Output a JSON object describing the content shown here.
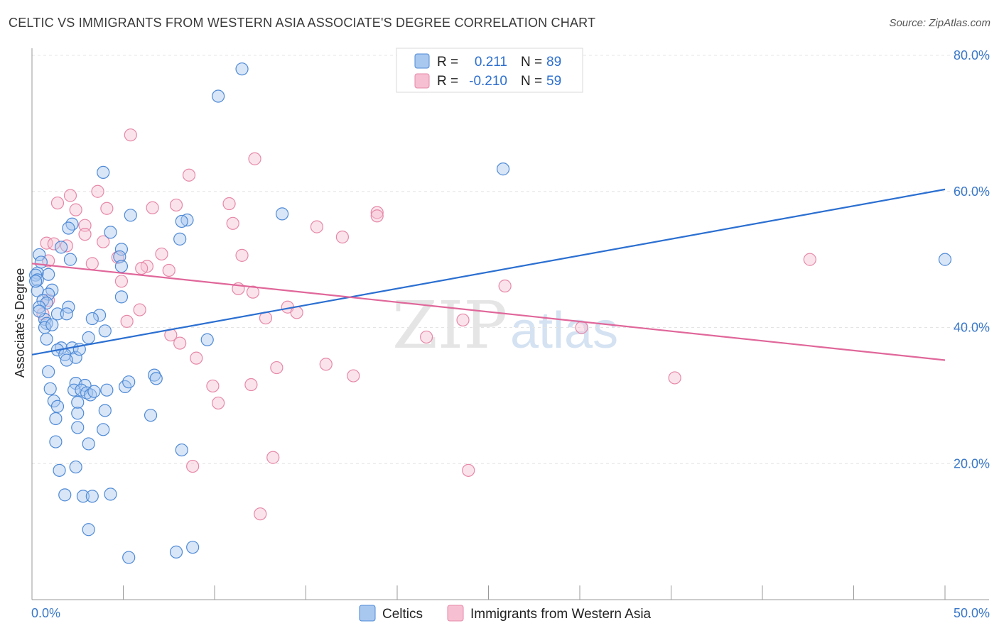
{
  "title": "CELTIC VS IMMIGRANTS FROM WESTERN ASIA ASSOCIATE'S DEGREE CORRELATION CHART",
  "source": "Source: ZipAtlas.com",
  "colors": {
    "celtics_fill": "#a9c8f0",
    "celtics_stroke": "#4f8ad6",
    "celtics_line": "#2b6fd1",
    "immigrants_fill": "#f7c0d2",
    "immigrants_stroke": "#e688a8",
    "immigrants_line": "#e0679a",
    "tick_text": "#3a78c8",
    "grid": "#e4e4e4"
  },
  "legend": {
    "r_label": "R =",
    "n_label": "N =",
    "celtics_r": "0.211",
    "celtics_n": "89",
    "immigrants_r": "-0.210",
    "immigrants_n": "59"
  },
  "watermark": {
    "zip": "ZIP",
    "atlas": "atlas"
  },
  "chart_data": {
    "type": "scatter",
    "title": "CELTIC VS IMMIGRANTS FROM WESTERN ASIA ASSOCIATE'S DEGREE CORRELATION CHART",
    "xlabel": "",
    "ylabel": "Associate's Degree",
    "xlim": [
      0,
      50
    ],
    "ylim": [
      0,
      80
    ],
    "x_tick_labels": [
      "0.0%",
      "50.0%"
    ],
    "y_ticks": [
      20,
      40,
      60,
      80
    ],
    "y_tick_labels": [
      "20.0%",
      "40.0%",
      "60.0%",
      "80.0%"
    ],
    "grid": true,
    "legend_position": "top-center",
    "series": [
      {
        "name": "Celtics",
        "r": 0.211,
        "n": 89,
        "trend": [
          [
            0,
            36.0
          ],
          [
            50,
            60.3
          ]
        ],
        "points": [
          [
            11.5,
            78
          ],
          [
            10.2,
            74
          ],
          [
            25.8,
            63.3
          ],
          [
            3.9,
            62.8
          ],
          [
            13.7,
            56.7
          ],
          [
            5.4,
            56.5
          ],
          [
            8.5,
            55.8
          ],
          [
            8.2,
            55.6
          ],
          [
            2.2,
            55.2
          ],
          [
            2.0,
            54.6
          ],
          [
            4.3,
            54.0
          ],
          [
            8.1,
            53.0
          ],
          [
            1.6,
            51.8
          ],
          [
            4.9,
            51.5
          ],
          [
            0.4,
            50.7
          ],
          [
            4.8,
            50.4
          ],
          [
            2.1,
            50.0
          ],
          [
            50.0,
            50.0
          ],
          [
            4.9,
            49.0
          ],
          [
            0.3,
            48.0
          ],
          [
            0.2,
            47.7
          ],
          [
            0.9,
            47.8
          ],
          [
            0.3,
            47.0
          ],
          [
            0.3,
            45.4
          ],
          [
            1.1,
            45.5
          ],
          [
            0.9,
            44.9
          ],
          [
            0.6,
            44.0
          ],
          [
            0.8,
            43.6
          ],
          [
            4.9,
            44.5
          ],
          [
            0.4,
            43.0
          ],
          [
            2.0,
            43.0
          ],
          [
            1.4,
            42.0
          ],
          [
            1.9,
            42.0
          ],
          [
            3.7,
            41.8
          ],
          [
            3.3,
            41.3
          ],
          [
            0.7,
            41.2
          ],
          [
            0.8,
            40.6
          ],
          [
            0.7,
            40.0
          ],
          [
            4.0,
            39.5
          ],
          [
            3.1,
            38.5
          ],
          [
            0.8,
            38.3
          ],
          [
            9.6,
            38.2
          ],
          [
            1.6,
            37.0
          ],
          [
            2.2,
            37.0
          ],
          [
            1.4,
            36.7
          ],
          [
            1.8,
            36.0
          ],
          [
            2.4,
            35.6
          ],
          [
            1.9,
            35.2
          ],
          [
            0.9,
            33.5
          ],
          [
            6.7,
            33.0
          ],
          [
            6.8,
            32.5
          ],
          [
            2.4,
            31.8
          ],
          [
            2.9,
            31.5
          ],
          [
            5.1,
            31.3
          ],
          [
            1.0,
            31.0
          ],
          [
            4.1,
            30.8
          ],
          [
            2.3,
            30.8
          ],
          [
            2.7,
            30.8
          ],
          [
            3.0,
            30.4
          ],
          [
            3.2,
            30.1
          ],
          [
            1.2,
            29.2
          ],
          [
            2.5,
            29.0
          ],
          [
            1.4,
            28.4
          ],
          [
            4.0,
            27.8
          ],
          [
            2.5,
            27.4
          ],
          [
            6.5,
            27.1
          ],
          [
            1.3,
            26.6
          ],
          [
            2.5,
            25.3
          ],
          [
            3.9,
            25.0
          ],
          [
            3.1,
            22.9
          ],
          [
            1.3,
            23.2
          ],
          [
            8.2,
            22.0
          ],
          [
            2.4,
            19.5
          ],
          [
            1.5,
            19.0
          ],
          [
            4.3,
            15.5
          ],
          [
            1.8,
            15.4
          ],
          [
            2.8,
            15.2
          ],
          [
            3.3,
            15.2
          ],
          [
            3.1,
            10.3
          ],
          [
            8.8,
            7.7
          ],
          [
            7.9,
            7.0
          ],
          [
            5.3,
            6.2
          ],
          [
            0.2,
            46.8
          ],
          [
            0.5,
            49.6
          ],
          [
            0.4,
            42.4
          ],
          [
            2.6,
            36.8
          ],
          [
            3.4,
            30.6
          ],
          [
            1.1,
            40.4
          ],
          [
            5.3,
            32.0
          ]
        ]
      },
      {
        "name": "Immigrants from Western Asia",
        "r": -0.21,
        "n": 59,
        "trend": [
          [
            0,
            49.4
          ],
          [
            50,
            35.2
          ]
        ],
        "points": [
          [
            5.4,
            68.3
          ],
          [
            12.2,
            64.8
          ],
          [
            8.6,
            62.4
          ],
          [
            3.6,
            60.0
          ],
          [
            2.1,
            59.4
          ],
          [
            1.4,
            58.3
          ],
          [
            7.9,
            58.0
          ],
          [
            10.8,
            58.2
          ],
          [
            4.1,
            57.5
          ],
          [
            6.6,
            57.6
          ],
          [
            2.4,
            57.3
          ],
          [
            18.9,
            56.9
          ],
          [
            18.9,
            56.4
          ],
          [
            11.0,
            55.3
          ],
          [
            2.9,
            55.0
          ],
          [
            15.6,
            54.8
          ],
          [
            2.9,
            53.7
          ],
          [
            17.0,
            53.3
          ],
          [
            0.8,
            52.4
          ],
          [
            1.2,
            52.3
          ],
          [
            3.9,
            52.6
          ],
          [
            1.9,
            52.0
          ],
          [
            7.1,
            50.8
          ],
          [
            11.5,
            50.6
          ],
          [
            4.7,
            50.3
          ],
          [
            42.6,
            50.0
          ],
          [
            0.9,
            49.8
          ],
          [
            3.3,
            49.4
          ],
          [
            6.3,
            49.0
          ],
          [
            6.0,
            48.7
          ],
          [
            7.5,
            48.4
          ],
          [
            4.9,
            46.8
          ],
          [
            25.9,
            46.1
          ],
          [
            11.3,
            45.7
          ],
          [
            12.1,
            45.2
          ],
          [
            0.9,
            44.0
          ],
          [
            14.0,
            43.0
          ],
          [
            5.9,
            42.6
          ],
          [
            14.5,
            42.2
          ],
          [
            0.6,
            42.0
          ],
          [
            12.8,
            41.4
          ],
          [
            23.6,
            41.1
          ],
          [
            5.2,
            40.9
          ],
          [
            30.1,
            40.0
          ],
          [
            7.6,
            38.9
          ],
          [
            21.6,
            38.6
          ],
          [
            8.1,
            37.7
          ],
          [
            9.0,
            35.5
          ],
          [
            16.1,
            34.6
          ],
          [
            13.4,
            34.1
          ],
          [
            17.6,
            32.9
          ],
          [
            35.2,
            32.6
          ],
          [
            12.0,
            31.6
          ],
          [
            9.9,
            31.4
          ],
          [
            10.2,
            28.9
          ],
          [
            8.8,
            19.6
          ],
          [
            13.2,
            20.9
          ],
          [
            23.9,
            19.0
          ],
          [
            12.5,
            12.6
          ]
        ]
      }
    ]
  }
}
